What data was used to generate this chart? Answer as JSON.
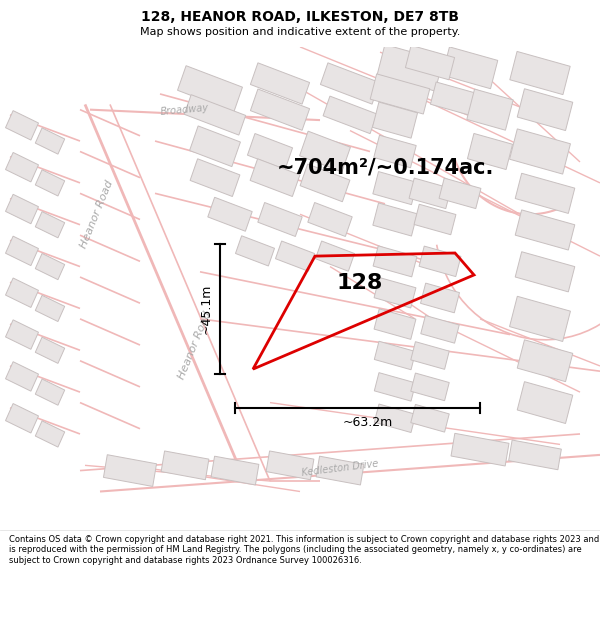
{
  "title": "128, HEANOR ROAD, ILKESTON, DE7 8TB",
  "subtitle": "Map shows position and indicative extent of the property.",
  "footer": "Contains OS data © Crown copyright and database right 2021. This information is subject to Crown copyright and database rights 2023 and is reproduced with the permission of HM Land Registry. The polygons (including the associated geometry, namely x, y co-ordinates) are subject to Crown copyright and database rights 2023 Ordnance Survey 100026316.",
  "area_label": "~704m²/~0.174ac.",
  "width_label": "~63.2m",
  "height_label": "~45.1m",
  "number_label": "128",
  "map_bg": "#ffffff",
  "plot_color": "#dd0000",
  "road_color": "#f0b8b8",
  "road_outline": "#e8a0a0",
  "building_fill": "#e8e4e4",
  "building_edge": "#c8c0c0",
  "label_color": "#aaaaaa",
  "dim_color": "#222222",
  "area_fontsize": 16,
  "num_fontsize": 18,
  "dim_fontsize": 9
}
